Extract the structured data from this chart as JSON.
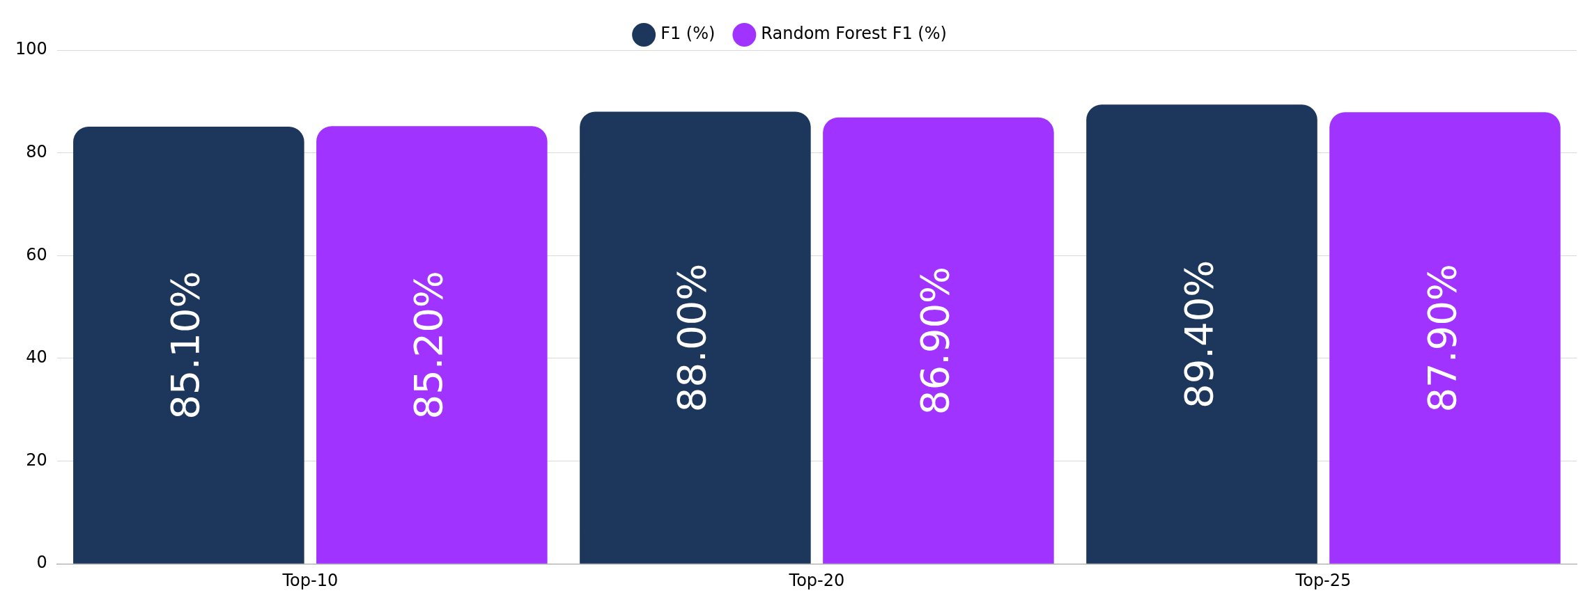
{
  "chart_data": {
    "type": "bar",
    "categories": [
      "Top-10",
      "Top-20",
      "Top-25"
    ],
    "series": [
      {
        "name": "F1 (%)",
        "color": "#1c365c",
        "values": [
          85.1,
          88.0,
          89.4
        ],
        "value_labels": [
          "85.10%",
          "88.00%",
          "89.40%"
        ]
      },
      {
        "name": "Random Forest F1 (%)",
        "color": "#a033ff",
        "values": [
          85.2,
          86.9,
          87.9
        ],
        "value_labels": [
          "85.20%",
          "86.90%",
          "87.90%"
        ]
      }
    ],
    "ylim": [
      0,
      100
    ],
    "yticks": [
      0,
      20,
      40,
      60,
      80,
      100
    ],
    "grid": "y",
    "legend": "top"
  }
}
